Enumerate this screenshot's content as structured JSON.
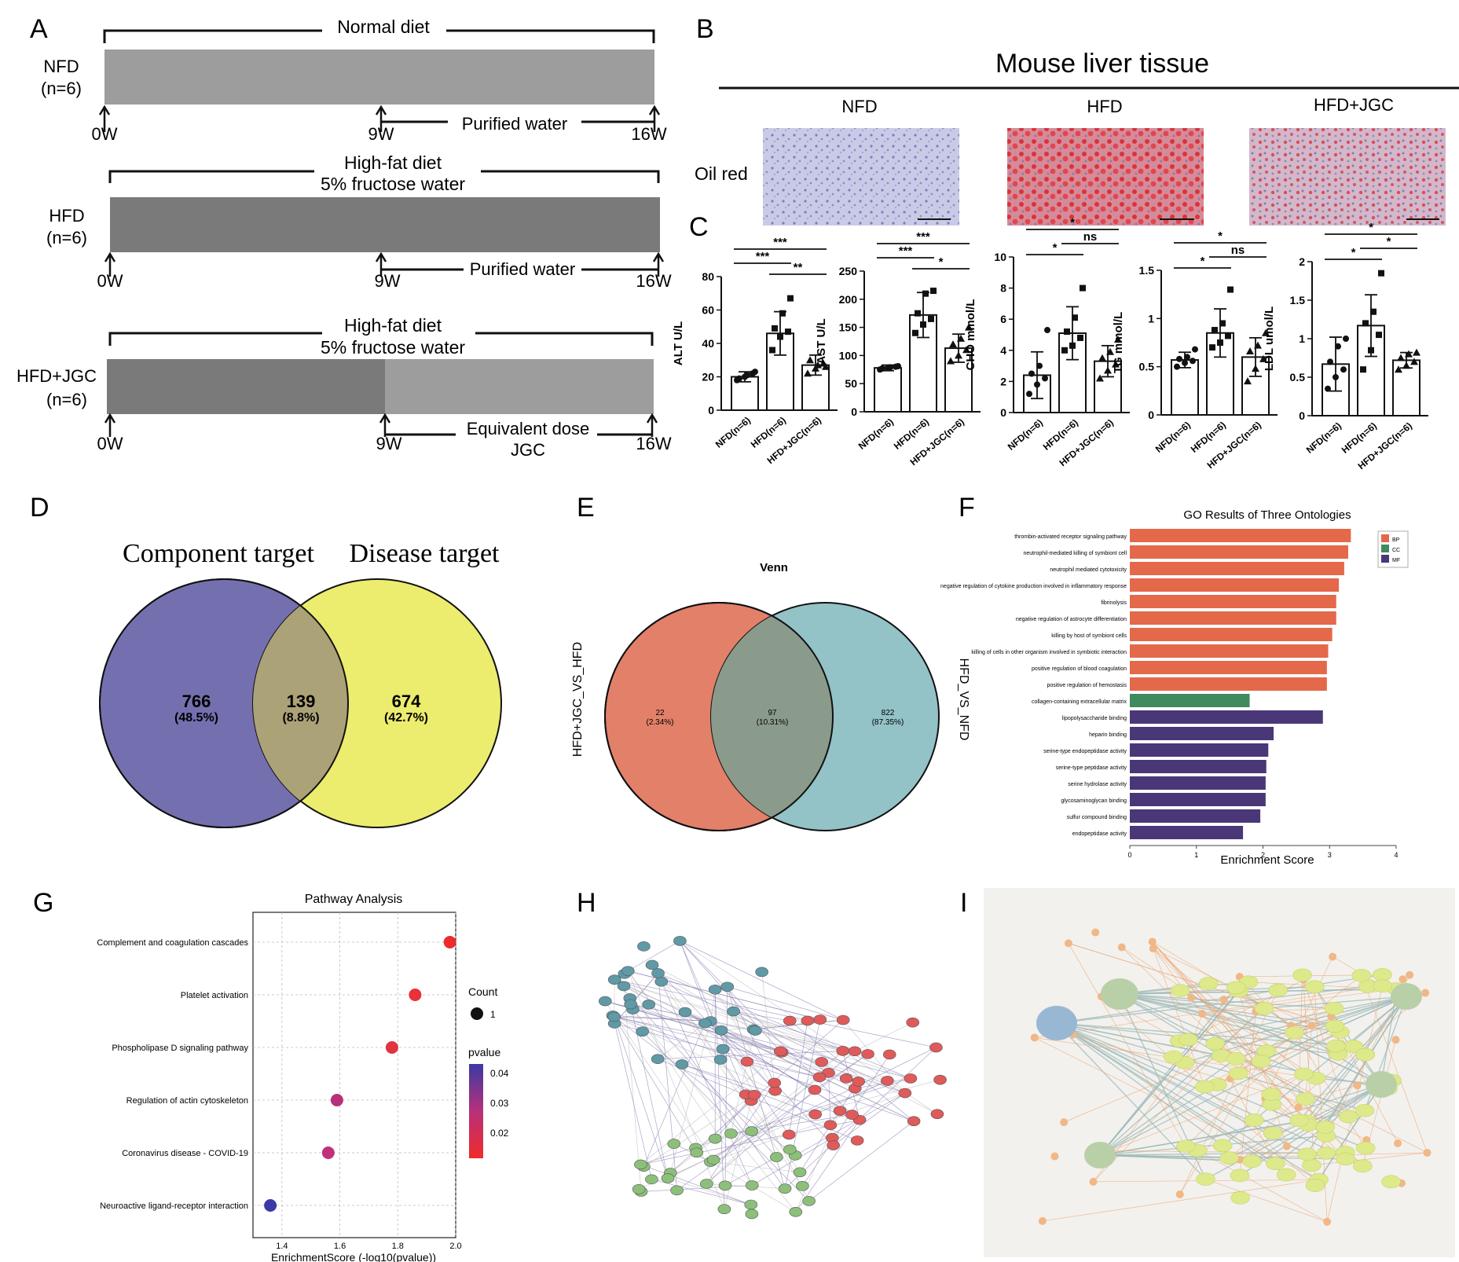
{
  "panel_letters": [
    "A",
    "B",
    "C",
    "D",
    "E",
    "F",
    "G",
    "H",
    "I"
  ],
  "panelA": {
    "groups": [
      {
        "name": "NFD",
        "n": "(n=6)",
        "top_label": "Normal diet",
        "top_label2": "",
        "mid_label": "Purified water",
        "mid_label2": "",
        "bar_color": "#9d9d9d",
        "bar_color2": "#9d9d9d"
      },
      {
        "name": "HFD",
        "n": "(n=6)",
        "top_label": "High-fat diet",
        "top_label2": "5% fructose water",
        "mid_label": "Purified water",
        "mid_label2": "",
        "bar_color": "#7a7a7a",
        "bar_color2": "#7a7a7a"
      },
      {
        "name": "HFD+JGC",
        "n": "(n=6)",
        "top_label": "High-fat diet",
        "top_label2": "5% fructose water",
        "mid_label": "Equivalent dose",
        "mid_label2": "JGC",
        "bar_color": "#7a7a7a",
        "bar_color2": "#9d9d9d"
      }
    ],
    "weeks": [
      "0W",
      "9W",
      "16W"
    ]
  },
  "panelB": {
    "title": "Mouse liver tissue",
    "stain": "Oil red",
    "columns": [
      "NFD",
      "HFD",
      "HFD+JGC"
    ]
  },
  "panelC": {
    "group_labels": [
      "NFD(n=6)",
      "HFD(n=6)",
      "HFD+JGC(n=6)"
    ],
    "charts": [
      {
        "ylabel": "ALT U/L",
        "ylim": [
          0,
          80
        ],
        "ticks": [
          0,
          20,
          40,
          60,
          80
        ],
        "means": [
          20,
          46,
          27
        ],
        "sd": [
          3,
          13,
          6
        ],
        "points": [
          [
            18,
            20,
            22,
            19,
            21,
            23
          ],
          [
            36,
            44,
            47,
            49,
            58,
            67
          ],
          [
            22,
            25,
            28,
            30,
            27,
            26
          ]
        ],
        "sig": [
          {
            "a": 0,
            "b": 2,
            "label": "***"
          },
          {
            "a": 0,
            "b": 1,
            "label": "***"
          },
          {
            "a": 1,
            "b": 2,
            "label": "**"
          }
        ]
      },
      {
        "ylabel": "AST U/L",
        "ylim": [
          0,
          250
        ],
        "ticks": [
          0,
          50,
          100,
          150,
          200,
          250
        ],
        "means": [
          78,
          172,
          113
        ],
        "sd": [
          5,
          40,
          25
        ],
        "points": [
          [
            75,
            78,
            80,
            77,
            79,
            81
          ],
          [
            140,
            155,
            165,
            175,
            210,
            215
          ],
          [
            90,
            100,
            110,
            120,
            130,
            150
          ]
        ],
        "sig": [
          {
            "a": 0,
            "b": 2,
            "label": "***"
          },
          {
            "a": 0,
            "b": 1,
            "label": "***"
          },
          {
            "a": 1,
            "b": 2,
            "label": "*"
          }
        ]
      },
      {
        "ylabel": "CHO mmol/L",
        "ylim": [
          0,
          10
        ],
        "ticks": [
          0,
          2,
          4,
          6,
          8,
          10
        ],
        "means": [
          2.4,
          5.1,
          3.3
        ],
        "sd": [
          1.5,
          1.7,
          1.0
        ],
        "points": [
          [
            1.2,
            1.8,
            2.2,
            2.5,
            3.0,
            5.3
          ],
          [
            4.0,
            4.3,
            4.8,
            5.2,
            6.1,
            8.0
          ],
          [
            2.2,
            2.7,
            3.1,
            3.5,
            3.9,
            4.7
          ]
        ],
        "sig": [
          {
            "a": 0,
            "b": 2,
            "label": "*"
          },
          {
            "a": 1,
            "b": 2,
            "label": "ns"
          },
          {
            "a": 0,
            "b": 1,
            "label": "*"
          }
        ]
      },
      {
        "ylabel": "TG mmol/L",
        "ylim": [
          0,
          1.5
        ],
        "ticks": [
          0,
          0.5,
          1.0,
          1.5
        ],
        "means": [
          0.57,
          0.85,
          0.6
        ],
        "sd": [
          0.08,
          0.25,
          0.2
        ],
        "points": [
          [
            0.5,
            0.54,
            0.56,
            0.58,
            0.6,
            0.68
          ],
          [
            0.7,
            0.75,
            0.82,
            0.88,
            0.95,
            1.3
          ],
          [
            0.35,
            0.48,
            0.58,
            0.66,
            0.72,
            0.85
          ]
        ],
        "sig": [
          {
            "a": 0,
            "b": 2,
            "label": "*"
          },
          {
            "a": 1,
            "b": 2,
            "label": "ns"
          },
          {
            "a": 0,
            "b": 1,
            "label": "*"
          }
        ]
      },
      {
        "ylabel": "LDL umol/L",
        "ylim": [
          0,
          2.0
        ],
        "ticks": [
          0,
          0.5,
          1.0,
          1.5,
          2.0
        ],
        "means": [
          0.67,
          1.17,
          0.72
        ],
        "sd": [
          0.35,
          0.4,
          0.1
        ],
        "points": [
          [
            0.35,
            0.5,
            0.6,
            0.7,
            0.9,
            1.0
          ],
          [
            0.6,
            0.85,
            1.05,
            1.2,
            1.35,
            1.85
          ],
          [
            0.6,
            0.65,
            0.7,
            0.75,
            0.8,
            0.82
          ]
        ],
        "sig": [
          {
            "a": 0,
            "b": 2,
            "label": "*"
          },
          {
            "a": 1,
            "b": 2,
            "label": "*"
          },
          {
            "a": 0,
            "b": 1,
            "label": "*"
          }
        ]
      }
    ]
  },
  "panelD": {
    "left_title": "Component target",
    "right_title": "Disease target",
    "left_count": "766",
    "left_pct": "(48.5%)",
    "mid_count": "139",
    "mid_pct": "(8.8%)",
    "right_count": "674",
    "right_pct": "(42.7%)",
    "left_color": "#7470b0",
    "right_color": "#ecec6f",
    "mid_color": "#aca278"
  },
  "panelE": {
    "title": "Venn",
    "left_set": "HFD+JGC_VS_HFD",
    "right_set": "HFD_VS_NFD",
    "left_count": "22",
    "left_pct": "(2.34%)",
    "mid_count": "97",
    "mid_pct": "(10.31%)",
    "right_count": "822",
    "right_pct": "(87.35%)",
    "left_color": "#e2806a",
    "right_color": "#93c2c7",
    "mid_color": "#8b9b8b"
  },
  "panelF": {
    "chart_data": {
      "type": "bar",
      "title": "GO Results of Three Ontologies",
      "xlabel": "Enrichment Score",
      "xlim": [
        0,
        4
      ],
      "xticks": [
        0,
        1,
        2,
        3,
        4
      ],
      "legend": [
        {
          "name": "BP",
          "color": "#e3694a"
        },
        {
          "name": "CC",
          "color": "#3f8a5f"
        },
        {
          "name": "MF",
          "color": "#4a3778"
        }
      ],
      "categories": [
        {
          "label": "thrombin-activated receptor signaling pathway",
          "value": 3.32,
          "ont": 0
        },
        {
          "label": "neutrophil-mediated killing of symbiont cell",
          "value": 3.28,
          "ont": 0
        },
        {
          "label": "neutrophil mediated cytotoxicity",
          "value": 3.22,
          "ont": 0
        },
        {
          "label": "negative regulation of cytokine production involved in inflammatory response",
          "value": 3.14,
          "ont": 0
        },
        {
          "label": "fibrinolysis",
          "value": 3.1,
          "ont": 0
        },
        {
          "label": "negative regulation of astrocyte differentiation",
          "value": 3.1,
          "ont": 0
        },
        {
          "label": "killing by host of symbiont cells",
          "value": 3.04,
          "ont": 0
        },
        {
          "label": "killing of cells in other organism involved in symbiotic interaction",
          "value": 2.98,
          "ont": 0
        },
        {
          "label": "positive regulation of blood coagulation",
          "value": 2.96,
          "ont": 0
        },
        {
          "label": "positive regulation of hemostasis",
          "value": 2.96,
          "ont": 0
        },
        {
          "label": "collagen-containing extracellular matrix",
          "value": 1.8,
          "ont": 1
        },
        {
          "label": "lipopolysaccharide binding",
          "value": 2.9,
          "ont": 2
        },
        {
          "label": "heparin binding",
          "value": 2.16,
          "ont": 2
        },
        {
          "label": "serine-type endopeptidase activity",
          "value": 2.08,
          "ont": 2
        },
        {
          "label": "serine-type peptidase activity",
          "value": 2.05,
          "ont": 2
        },
        {
          "label": "serine hydrolase activity",
          "value": 2.04,
          "ont": 2
        },
        {
          "label": "glycosaminoglycan binding",
          "value": 2.04,
          "ont": 2
        },
        {
          "label": "sulfur compound binding",
          "value": 1.96,
          "ont": 2
        },
        {
          "label": "endopeptidase activity",
          "value": 1.7,
          "ont": 2
        }
      ]
    }
  },
  "panelG": {
    "chart_data": {
      "type": "scatter",
      "title": "Pathway Analysis",
      "xlabel": "EnrichmentScore (-log10(pvalue))",
      "xlim": [
        1.3,
        2.0
      ],
      "xticks": [
        1.4,
        1.6,
        1.8,
        2.0
      ],
      "size_legend_title": "Count",
      "size_legend_value": "1",
      "color_legend_title": "pvalue",
      "color_legend_ticks": [
        "0.04",
        "0.03",
        "0.02"
      ],
      "pathways": [
        {
          "label": "Complement and coagulation cascades",
          "x": 1.98,
          "p": 0.011,
          "color": "#ec2b2b"
        },
        {
          "label": "Platelet activation",
          "x": 1.86,
          "p": 0.014,
          "color": "#ea3038"
        },
        {
          "label": "Phospholipase D signaling pathway",
          "x": 1.78,
          "p": 0.017,
          "color": "#e03440"
        },
        {
          "label": "Regulation of actin cytoskeleton",
          "x": 1.59,
          "p": 0.026,
          "color": "#b8307a"
        },
        {
          "label": "Coronavirus disease - COVID-19",
          "x": 1.56,
          "p": 0.027,
          "color": "#c0307c"
        },
        {
          "label": "Neuroactive ligand-receptor interaction",
          "x": 1.36,
          "p": 0.044,
          "color": "#3a3aa5"
        }
      ]
    }
  }
}
